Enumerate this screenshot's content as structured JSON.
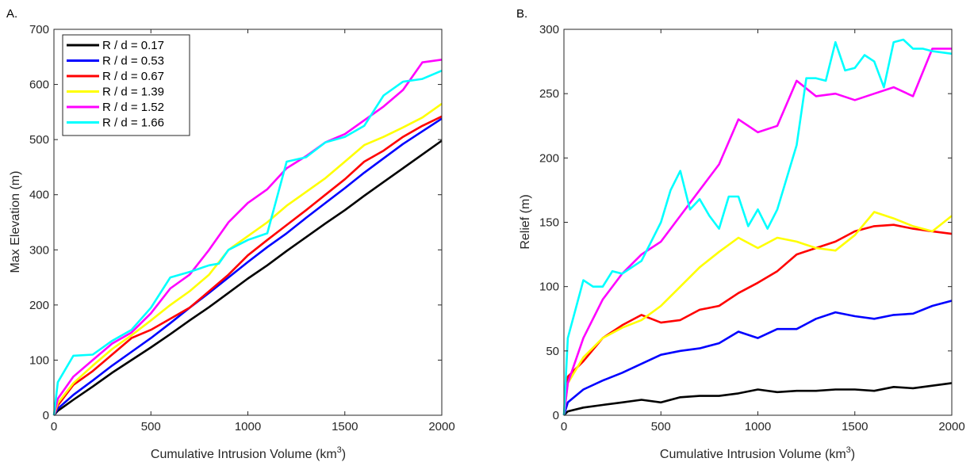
{
  "panels": [
    {
      "label": "A.",
      "xlabel": "Cumulative Intrusion Volume (km",
      "xlabel_sup": "3",
      "xlabel_end": ")",
      "ylabel": "Max Elevation (m)"
    },
    {
      "label": "B.",
      "xlabel": "Cumulative Intrusion Volume (km",
      "xlabel_sup": "3",
      "xlabel_end": ")",
      "ylabel": "Relief (m)"
    }
  ],
  "chart_data": [
    {
      "type": "line",
      "title": "",
      "xlabel": "Cumulative Intrusion Volume (km3)",
      "ylabel": "Max Elevation (m)",
      "xlim": [
        0,
        2000
      ],
      "ylim": [
        0,
        700
      ],
      "xticks": [
        0,
        500,
        1000,
        1500,
        2000
      ],
      "yticks": [
        0,
        100,
        200,
        300,
        400,
        500,
        600,
        700
      ],
      "grid": false,
      "legend_position": "top-left",
      "series": [
        {
          "name": "R / d = 0.17",
          "color": "#000000",
          "x": [
            0,
            20,
            100,
            200,
            300,
            400,
            500,
            600,
            700,
            800,
            900,
            1000,
            1100,
            1200,
            1300,
            1400,
            1500,
            1600,
            1700,
            1800,
            1900,
            2000
          ],
          "y": [
            0,
            8,
            28,
            52,
            77,
            100,
            123,
            147,
            172,
            196,
            222,
            248,
            272,
            298,
            323,
            348,
            372,
            398,
            423,
            448,
            473,
            498
          ]
        },
        {
          "name": "R / d = 0.53",
          "color": "#0000ff",
          "x": [
            0,
            20,
            100,
            200,
            300,
            400,
            500,
            600,
            700,
            800,
            900,
            1000,
            1100,
            1200,
            1300,
            1400,
            1500,
            1600,
            1700,
            1800,
            1900,
            2000
          ],
          "y": [
            0,
            12,
            37,
            63,
            90,
            115,
            140,
            167,
            195,
            222,
            250,
            278,
            305,
            330,
            358,
            385,
            412,
            440,
            466,
            492,
            515,
            538
          ]
        },
        {
          "name": "R / d = 0.67",
          "color": "#ff0000",
          "x": [
            0,
            20,
            100,
            200,
            300,
            400,
            500,
            600,
            700,
            800,
            900,
            1000,
            1100,
            1200,
            1300,
            1400,
            1500,
            1600,
            1700,
            1800,
            1900,
            2000
          ],
          "y": [
            0,
            18,
            55,
            80,
            110,
            140,
            155,
            175,
            195,
            225,
            255,
            290,
            318,
            345,
            372,
            400,
            428,
            460,
            480,
            505,
            525,
            542
          ]
        },
        {
          "name": "R / d = 1.39",
          "color": "#ffff00",
          "x": [
            0,
            20,
            100,
            200,
            300,
            400,
            500,
            600,
            700,
            800,
            900,
            1000,
            1100,
            1200,
            1300,
            1400,
            1500,
            1600,
            1700,
            1800,
            1900,
            2000
          ],
          "y": [
            0,
            22,
            58,
            90,
            120,
            145,
            172,
            200,
            225,
            255,
            300,
            325,
            350,
            380,
            405,
            430,
            460,
            490,
            505,
            522,
            540,
            565
          ]
        },
        {
          "name": "R / d = 1.52",
          "color": "#ff00ff",
          "x": [
            0,
            20,
            100,
            200,
            300,
            400,
            500,
            600,
            700,
            800,
            900,
            1000,
            1100,
            1200,
            1300,
            1400,
            1500,
            1600,
            1700,
            1800,
            1900,
            2000
          ],
          "y": [
            0,
            30,
            70,
            100,
            130,
            150,
            185,
            230,
            255,
            300,
            350,
            385,
            410,
            448,
            470,
            495,
            510,
            535,
            560,
            590,
            640,
            645
          ]
        },
        {
          "name": "R / d = 1.66",
          "color": "#00ffff",
          "x": [
            0,
            20,
            100,
            200,
            300,
            400,
            500,
            600,
            700,
            800,
            850,
            900,
            1000,
            1100,
            1200,
            1300,
            1400,
            1500,
            1600,
            1700,
            1800,
            1900,
            2000
          ],
          "y": [
            0,
            60,
            108,
            110,
            135,
            155,
            195,
            250,
            260,
            272,
            275,
            300,
            318,
            330,
            460,
            468,
            495,
            505,
            525,
            580,
            605,
            610,
            625
          ]
        }
      ]
    },
    {
      "type": "line",
      "title": "",
      "xlabel": "Cumulative Intrusion Volume (km3)",
      "ylabel": "Relief (m)",
      "xlim": [
        0,
        2000
      ],
      "ylim": [
        0,
        300
      ],
      "xticks": [
        0,
        500,
        1000,
        1500,
        2000
      ],
      "yticks": [
        0,
        50,
        100,
        150,
        200,
        250,
        300
      ],
      "grid": false,
      "series": [
        {
          "name": "R / d = 0.17",
          "color": "#000000",
          "x": [
            0,
            20,
            100,
            200,
            300,
            400,
            500,
            600,
            700,
            800,
            900,
            1000,
            1100,
            1200,
            1300,
            1400,
            1500,
            1600,
            1700,
            1800,
            1900,
            2000
          ],
          "y": [
            0,
            3,
            6,
            8,
            10,
            12,
            10,
            14,
            15,
            15,
            17,
            20,
            18,
            19,
            19,
            20,
            20,
            19,
            22,
            21,
            23,
            25
          ]
        },
        {
          "name": "R / d = 0.53",
          "color": "#0000ff",
          "x": [
            0,
            20,
            100,
            200,
            300,
            400,
            500,
            600,
            700,
            800,
            900,
            1000,
            1100,
            1200,
            1300,
            1400,
            1500,
            1600,
            1700,
            1800,
            1900,
            2000
          ],
          "y": [
            0,
            10,
            20,
            27,
            33,
            40,
            47,
            50,
            52,
            56,
            65,
            60,
            67,
            67,
            75,
            80,
            77,
            75,
            78,
            79,
            85,
            89
          ]
        },
        {
          "name": "R / d = 0.67",
          "color": "#ff0000",
          "x": [
            0,
            20,
            100,
            200,
            300,
            400,
            500,
            600,
            700,
            800,
            900,
            1000,
            1100,
            1200,
            1300,
            1400,
            1500,
            1600,
            1700,
            1800,
            1900,
            2000
          ],
          "y": [
            0,
            30,
            42,
            60,
            70,
            78,
            72,
            74,
            82,
            85,
            95,
            103,
            112,
            125,
            130,
            135,
            143,
            147,
            148,
            145,
            143,
            141
          ]
        },
        {
          "name": "R / d = 1.39",
          "color": "#ffff00",
          "x": [
            0,
            20,
            100,
            200,
            300,
            400,
            500,
            600,
            700,
            800,
            900,
            1000,
            1100,
            1200,
            1300,
            1400,
            1500,
            1600,
            1700,
            1800,
            1900,
            2000
          ],
          "y": [
            0,
            25,
            45,
            60,
            68,
            74,
            85,
            100,
            115,
            127,
            138,
            130,
            138,
            135,
            130,
            128,
            140,
            158,
            153,
            147,
            143,
            155
          ]
        },
        {
          "name": "R / d = 1.52",
          "color": "#ff00ff",
          "x": [
            0,
            20,
            100,
            200,
            300,
            400,
            500,
            600,
            700,
            800,
            900,
            1000,
            1100,
            1200,
            1300,
            1400,
            1500,
            1600,
            1700,
            1800,
            1900,
            2000
          ],
          "y": [
            0,
            25,
            60,
            90,
            110,
            125,
            135,
            155,
            175,
            195,
            230,
            220,
            225,
            260,
            248,
            250,
            245,
            250,
            255,
            248,
            285,
            285
          ]
        },
        {
          "name": "R / d = 1.66",
          "color": "#00ffff",
          "x": [
            0,
            20,
            100,
            150,
            200,
            250,
            300,
            400,
            500,
            550,
            600,
            650,
            700,
            750,
            800,
            850,
            900,
            950,
            1000,
            1050,
            1100,
            1200,
            1250,
            1300,
            1350,
            1400,
            1450,
            1500,
            1550,
            1600,
            1650,
            1700,
            1750,
            1800,
            1850,
            1900,
            1950,
            2000
          ],
          "y": [
            0,
            60,
            105,
            100,
            100,
            112,
            110,
            120,
            150,
            175,
            190,
            160,
            168,
            155,
            145,
            170,
            170,
            147,
            160,
            145,
            160,
            210,
            262,
            262,
            260,
            290,
            268,
            270,
            280,
            275,
            255,
            290,
            292,
            285,
            285,
            283,
            282,
            281
          ]
        }
      ]
    }
  ]
}
